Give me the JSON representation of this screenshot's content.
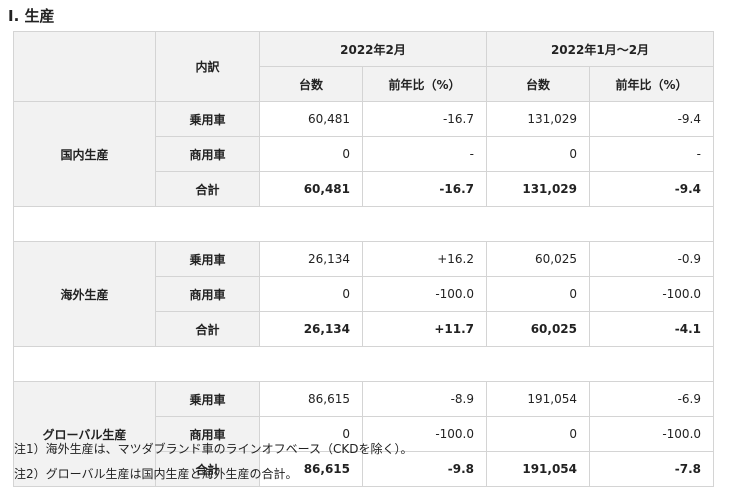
{
  "title": "I. 生産",
  "header": {
    "breakdown": "内訳",
    "period1": "2022年2月",
    "period2": "2022年1月〜2月",
    "units": "台数",
    "yoy": "前年比（%）"
  },
  "groups": [
    {
      "name": "国内生産",
      "rows": [
        {
          "label": "乗用車",
          "p1_units": "60,481",
          "p1_yoy": "-16.7",
          "p2_units": "131,029",
          "p2_yoy": "-9.4"
        },
        {
          "label": "商用車",
          "p1_units": "0",
          "p1_yoy": "-",
          "p2_units": "0",
          "p2_yoy": "-"
        },
        {
          "label": "合計",
          "p1_units": "60,481",
          "p1_yoy": "-16.7",
          "p2_units": "131,029",
          "p2_yoy": "-9.4"
        }
      ]
    },
    {
      "name": "海外生産",
      "rows": [
        {
          "label": "乗用車",
          "p1_units": "26,134",
          "p1_yoy": "+16.2",
          "p2_units": "60,025",
          "p2_yoy": "-0.9"
        },
        {
          "label": "商用車",
          "p1_units": "0",
          "p1_yoy": "-100.0",
          "p2_units": "0",
          "p2_yoy": "-100.0"
        },
        {
          "label": "合計",
          "p1_units": "26,134",
          "p1_yoy": "+11.7",
          "p2_units": "60,025",
          "p2_yoy": "-4.1"
        }
      ]
    },
    {
      "name": "グローバル生産",
      "rows": [
        {
          "label": "乗用車",
          "p1_units": "86,615",
          "p1_yoy": "-8.9",
          "p2_units": "191,054",
          "p2_yoy": "-6.9"
        },
        {
          "label": "商用車",
          "p1_units": "0",
          "p1_yoy": "-100.0",
          "p2_units": "0",
          "p2_yoy": "-100.0"
        },
        {
          "label": "合計",
          "p1_units": "86,615",
          "p1_yoy": "-9.8",
          "p2_units": "191,054",
          "p2_yoy": "-7.8"
        }
      ]
    }
  ],
  "notes": [
    "注1）海外生産は、マツダブランド車のラインオフベース（CKDを除く）。",
    "注2）グローバル生産は国内生産と海外生産の合計。"
  ]
}
